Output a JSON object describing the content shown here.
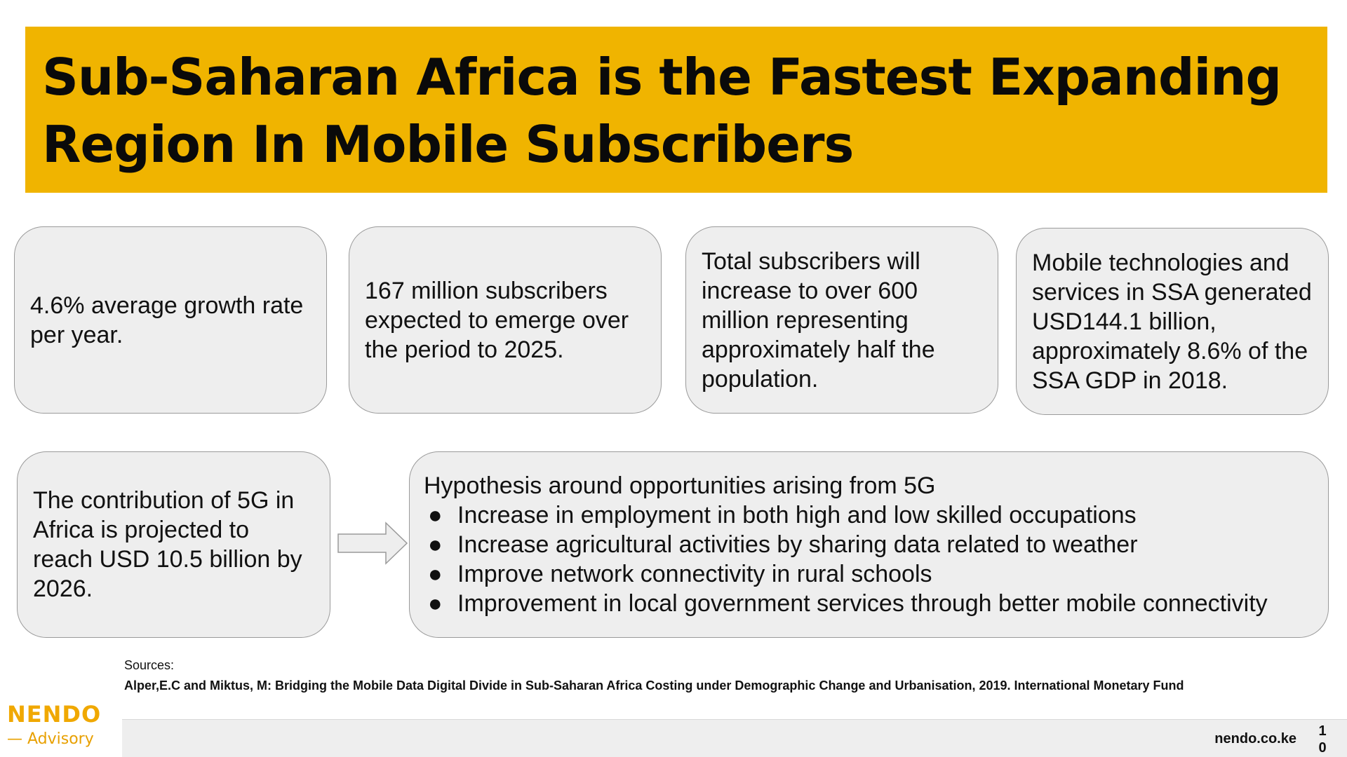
{
  "title": "Sub-Saharan Africa is the Fastest Expanding Region In Mobile Subscribers",
  "colors": {
    "accent": "#f0b400",
    "card_bg": "#eeeeee",
    "card_border": "#9a9a9a"
  },
  "cards": [
    {
      "text": "4.6% average growth rate per year."
    },
    {
      "text": "167 million subscribers expected to emerge over the period to 2025."
    },
    {
      "text": "Total subscribers will increase to over 600 million representing approximately half the population."
    },
    {
      "text": "Mobile technologies and services in SSA generated USD144.1 billion, approximately 8.6% of the SSA GDP in 2018."
    }
  ],
  "projection": {
    "text": "The contribution of 5G in Africa is projected to reach USD 10.5 billion by 2026."
  },
  "arrow_icon": "right-arrow-icon",
  "hypothesis": {
    "heading": "Hypothesis around opportunities arising from 5G",
    "bullet_char": "●",
    "bullets": [
      "Increase in employment in both high and low skilled occupations",
      "Increase agricultural activities by sharing data related to weather",
      "Improve network connectivity in rural schools",
      "Improvement in local government services through better mobile connectivity"
    ]
  },
  "sources": {
    "label": "Sources:",
    "reference": "Alper,E.C and Miktus, M: Bridging the Mobile Data Digital Divide in Sub-Saharan Africa Costing under Demographic Change and Urbanisation, 2019. International Monetary Fund"
  },
  "footer": {
    "url": "nendo.co.ke",
    "page_number": "10"
  },
  "logo": {
    "name": "NENDO",
    "sub": "— Advisory"
  }
}
